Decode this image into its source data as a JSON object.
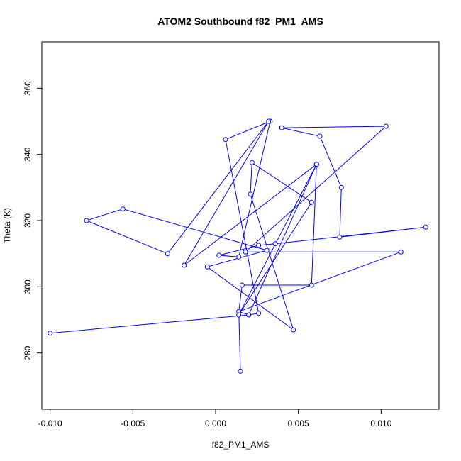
{
  "chart_data": {
    "type": "line",
    "title": "ATOM2 Southbound f82_PM1_AMS",
    "xlabel": "f82_PM1_AMS",
    "ylabel": "Theta (K)",
    "xlim": [
      -0.0105,
      0.0135
    ],
    "ylim": [
      263,
      374
    ],
    "x_ticks": [
      -0.01,
      -0.005,
      0.0,
      0.005,
      0.01
    ],
    "x_tick_labels": [
      "-0.010",
      "-0.005",
      "0.000",
      "0.005",
      "0.010"
    ],
    "y_ticks": [
      280,
      300,
      320,
      340,
      360
    ],
    "y_tick_labels": [
      "280",
      "300",
      "320",
      "340",
      "360"
    ],
    "grid": false,
    "marker": "open-circle",
    "color": "#0000ff",
    "series": [
      {
        "x": [
          0.0015,
          0.0014,
          0.002,
          0.0026,
          0.0006,
          0.0033,
          0.0014,
          0.0002,
          0.0026,
          0.0036,
          0.0127,
          0.0075,
          0.0076,
          0.0063,
          0.004,
          0.0103,
          0.0018,
          0.0112,
          0.0014,
          0.0016,
          0.0058,
          0.0061,
          0.0014,
          0.0058,
          0.0022,
          0.0021,
          0.0047,
          -0.0005,
          0.0031,
          -0.0056,
          -0.0078,
          -0.0029,
          0.0032,
          -0.0019,
          0.0061,
          0.002,
          -0.01
        ],
        "y": [
          274.5,
          292.5,
          291.5,
          292.0,
          344.5,
          350.0,
          309.0,
          309.5,
          312.5,
          313.0,
          318.0,
          315.0,
          330.0,
          345.5,
          348.0,
          348.5,
          310.5,
          310.5,
          292.5,
          300.5,
          300.5,
          337.0,
          291.5,
          325.5,
          337.5,
          328.0,
          287.0,
          306.0,
          311.0,
          323.5,
          320.0,
          310.0,
          350.0,
          306.5,
          337.0,
          291.5,
          286.0
        ]
      }
    ]
  }
}
